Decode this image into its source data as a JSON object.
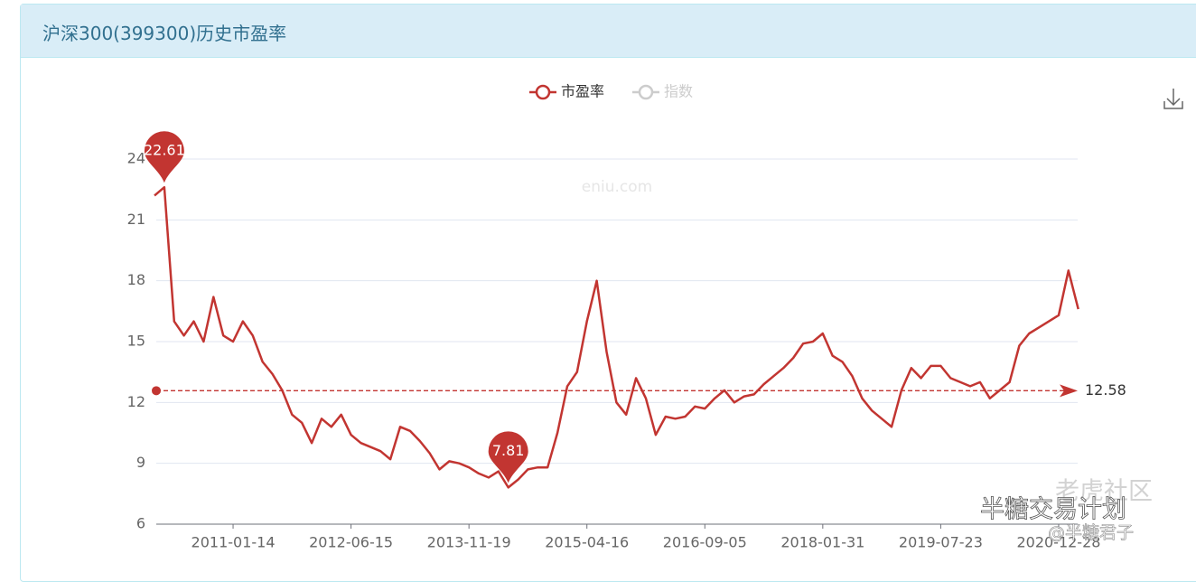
{
  "chart_data": {
    "type": "line",
    "title": "沪深300(399300)历史市盈率",
    "categories": [
      null,
      null,
      null,
      null,
      null,
      null,
      null,
      null,
      "2011-01-14",
      null,
      null,
      null,
      null,
      null,
      null,
      null,
      null,
      null,
      null,
      null,
      "2012-06-15",
      null,
      null,
      null,
      null,
      null,
      null,
      null,
      null,
      null,
      null,
      null,
      "2013-11-19",
      null,
      null,
      null,
      null,
      null,
      null,
      null,
      null,
      null,
      null,
      null,
      "2015-04-16",
      null,
      null,
      null,
      null,
      null,
      null,
      null,
      null,
      null,
      null,
      null,
      "2016-09-05",
      null,
      null,
      null,
      null,
      null,
      null,
      null,
      null,
      null,
      null,
      null,
      "2018-01-31",
      null,
      null,
      null,
      null,
      null,
      null,
      null,
      null,
      null,
      null,
      null,
      "2019-07-23",
      null,
      null,
      null,
      null,
      null,
      null,
      null,
      null,
      null,
      null,
      null,
      "2020-12-28",
      null,
      null
    ],
    "series": [
      {
        "name": "市盈率",
        "color": "#c23531",
        "values": [
          22.2,
          22.61,
          16.0,
          15.3,
          16.0,
          15.0,
          17.2,
          15.3,
          15.0,
          16.0,
          15.3,
          14.0,
          13.4,
          12.6,
          11.4,
          11.0,
          10.0,
          11.2,
          10.8,
          11.4,
          10.4,
          10.0,
          9.8,
          9.6,
          9.2,
          10.8,
          10.6,
          10.1,
          9.5,
          8.7,
          9.1,
          9.0,
          8.8,
          8.5,
          8.3,
          8.6,
          7.81,
          8.2,
          8.7,
          8.8,
          8.8,
          10.5,
          12.8,
          13.5,
          16.0,
          18.0,
          14.5,
          12.0,
          11.4,
          13.2,
          12.2,
          10.4,
          11.3,
          11.2,
          11.3,
          11.8,
          11.7,
          12.2,
          12.6,
          12.0,
          12.3,
          12.4,
          12.9,
          13.3,
          13.7,
          14.2,
          14.9,
          15.0,
          15.4,
          14.3,
          14.0,
          13.3,
          12.2,
          11.6,
          11.2,
          10.8,
          12.6,
          13.7,
          13.2,
          13.8,
          13.8,
          13.2,
          13.0,
          12.8,
          13.0,
          12.2,
          12.6,
          13.0,
          14.8,
          15.4,
          15.7,
          16.0,
          16.3,
          18.5,
          16.6
        ]
      }
    ],
    "hidden_series": [
      {
        "name": "指数",
        "color": "#cccccc"
      }
    ],
    "average": 12.58,
    "ylim": [
      6,
      24
    ],
    "yticks": [
      6,
      9,
      12,
      15,
      18,
      21,
      24
    ],
    "grid": true,
    "watermarks": [
      "eniu.com",
      "老虎社区",
      "半糖交易计划",
      "@半糖君子"
    ]
  }
}
